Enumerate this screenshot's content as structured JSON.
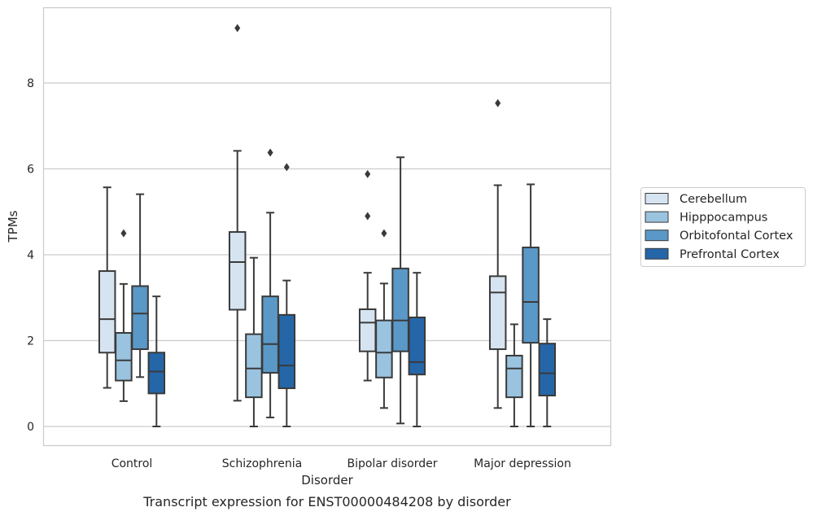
{
  "chart_data": {
    "type": "box",
    "title": "",
    "caption": "Transcript expression for ENST00000484208 by disorder",
    "xlabel": "Disorder",
    "ylabel": "TPMs",
    "ylim": [
      -0.45,
      9.8
    ],
    "yticks": [
      0,
      2,
      4,
      6,
      8
    ],
    "grid": "horizontal",
    "legend_position": "right",
    "categories": [
      "Control",
      "Schizophrenia",
      "Bipolar disorder",
      "Major depression"
    ],
    "series": [
      {
        "name": "Cerebellum",
        "color": "#d6e4f2",
        "boxes": [
          {
            "whisker_low": 0.9,
            "q1": 1.72,
            "median": 2.5,
            "q3": 3.62,
            "whisker_high": 5.57,
            "outliers": []
          },
          {
            "whisker_low": 0.6,
            "q1": 2.72,
            "median": 3.83,
            "q3": 4.53,
            "whisker_high": 6.42,
            "outliers": [
              9.28
            ]
          },
          {
            "whisker_low": 1.07,
            "q1": 1.75,
            "median": 2.42,
            "q3": 2.73,
            "whisker_high": 3.58,
            "outliers": [
              4.9,
              5.88
            ]
          },
          {
            "whisker_low": 0.43,
            "q1": 1.8,
            "median": 3.12,
            "q3": 3.5,
            "whisker_high": 5.62,
            "outliers": [
              7.53
            ]
          }
        ]
      },
      {
        "name": "Hipppocampus",
        "color": "#9ac3df",
        "boxes": [
          {
            "whisker_low": 0.59,
            "q1": 1.07,
            "median": 1.54,
            "q3": 2.18,
            "whisker_high": 3.32,
            "outliers": [
              4.5
            ]
          },
          {
            "whisker_low": 0.0,
            "q1": 0.68,
            "median": 1.35,
            "q3": 2.15,
            "whisker_high": 3.93,
            "outliers": []
          },
          {
            "whisker_low": 0.43,
            "q1": 1.14,
            "median": 1.72,
            "q3": 2.47,
            "whisker_high": 3.33,
            "outliers": [
              4.5
            ]
          },
          {
            "whisker_low": 0.0,
            "q1": 0.68,
            "median": 1.35,
            "q3": 1.65,
            "whisker_high": 2.38,
            "outliers": []
          }
        ]
      },
      {
        "name": "Orbitofontal Cortex",
        "color": "#5a98c7",
        "boxes": [
          {
            "whisker_low": 1.15,
            "q1": 1.8,
            "median": 2.63,
            "q3": 3.27,
            "whisker_high": 5.41,
            "outliers": []
          },
          {
            "whisker_low": 0.21,
            "q1": 1.25,
            "median": 1.92,
            "q3": 3.03,
            "whisker_high": 4.98,
            "outliers": [
              6.38
            ]
          },
          {
            "whisker_low": 0.07,
            "q1": 1.75,
            "median": 2.47,
            "q3": 3.68,
            "whisker_high": 6.27,
            "outliers": []
          },
          {
            "whisker_low": 0.0,
            "q1": 1.95,
            "median": 2.9,
            "q3": 4.17,
            "whisker_high": 5.64,
            "outliers": []
          }
        ]
      },
      {
        "name": "Prefrontal Cortex",
        "color": "#2566a8",
        "boxes": [
          {
            "whisker_low": 0.0,
            "q1": 0.77,
            "median": 1.28,
            "q3": 1.72,
            "whisker_high": 3.03,
            "outliers": []
          },
          {
            "whisker_low": 0.0,
            "q1": 0.89,
            "median": 1.42,
            "q3": 2.6,
            "whisker_high": 3.4,
            "outliers": [
              6.04
            ]
          },
          {
            "whisker_low": 0.0,
            "q1": 1.21,
            "median": 1.5,
            "q3": 2.54,
            "whisker_high": 3.58,
            "outliers": []
          },
          {
            "whisker_low": 0.0,
            "q1": 0.72,
            "median": 1.24,
            "q3": 1.93,
            "whisker_high": 2.5,
            "outliers": []
          }
        ]
      }
    ]
  },
  "styles": {
    "grid_color": "#cccccc",
    "frame_color": "#cccccc",
    "box_line_color": "#3a3a3a"
  }
}
